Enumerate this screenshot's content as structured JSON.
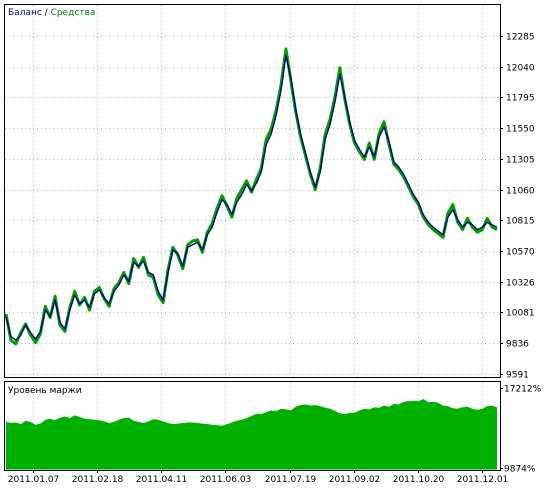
{
  "chart_data": [
    {
      "type": "line",
      "legend": {
        "items": [
          {
            "name": "Баланс",
            "color": "#00008b"
          },
          {
            "name": "Средства",
            "color": "#00a000"
          }
        ],
        "separator": " / ",
        "placement": "top-left"
      },
      "ylim": [
        9591,
        12530
      ],
      "y_ticks": [
        "12285",
        "12040",
        "11795",
        "11550",
        "11305",
        "11060",
        "10815",
        "10570",
        "10326",
        "10081",
        "9836",
        "9591"
      ],
      "grid": true,
      "series": [
        {
          "name": "Баланс",
          "color": "#00008b",
          "x": [
            0,
            1,
            2,
            3,
            4,
            5,
            6,
            7,
            8,
            9,
            10,
            11,
            12,
            13,
            14,
            15,
            16,
            17,
            18,
            19,
            20,
            21,
            22,
            23,
            24,
            25,
            26,
            27,
            28,
            29,
            30,
            31,
            32,
            33,
            34,
            35,
            36,
            37,
            38,
            39,
            40,
            41,
            42,
            43,
            44,
            45,
            46,
            47,
            48,
            49,
            50,
            51,
            52,
            53,
            54,
            55,
            56,
            57,
            58,
            59,
            60,
            61,
            62,
            63,
            64,
            65,
            66,
            67,
            68,
            69,
            70,
            71,
            72,
            73,
            74,
            75,
            76,
            77,
            78,
            79,
            80,
            81,
            82,
            83,
            84,
            85,
            86,
            87,
            88,
            89,
            90,
            91,
            92,
            93,
            94,
            95,
            96,
            97,
            98,
            99,
            100
          ],
          "values": [
            10050,
            9890,
            9860,
            9900,
            9980,
            9920,
            9870,
            9930,
            10100,
            10050,
            10180,
            10000,
            9950,
            10100,
            10220,
            10150,
            10180,
            10120,
            10230,
            10260,
            10200,
            10150,
            10250,
            10300,
            10380,
            10330,
            10480,
            10450,
            10490,
            10400,
            10380,
            10250,
            10180,
            10400,
            10580,
            10550,
            10450,
            10600,
            10620,
            10640,
            10580,
            10700,
            10760,
            10880,
            10980,
            10940,
            10860,
            10960,
            11020,
            11100,
            11050,
            11110,
            11200,
            11420,
            11500,
            11650,
            11850,
            12130,
            11950,
            11700,
            11500,
            11350,
            11200,
            11080,
            11200,
            11460,
            11580,
            11760,
            11980,
            11800,
            11600,
            11450,
            11380,
            11320,
            11400,
            11320,
            11480,
            11560,
            11440,
            11280,
            11240,
            11180,
            11100,
            11020,
            10960,
            10860,
            10800,
            10760,
            10730,
            10700,
            10840,
            10900,
            10820,
            10760,
            10800,
            10780,
            10740,
            10760,
            10800,
            10780,
            10760
          ]
        },
        {
          "name": "Средства",
          "color": "#00a000",
          "x": [
            0,
            1,
            2,
            3,
            4,
            5,
            6,
            7,
            8,
            9,
            10,
            11,
            12,
            13,
            14,
            15,
            16,
            17,
            18,
            19,
            20,
            21,
            22,
            23,
            24,
            25,
            26,
            27,
            28,
            29,
            30,
            31,
            32,
            33,
            34,
            35,
            36,
            37,
            38,
            39,
            40,
            41,
            42,
            43,
            44,
            45,
            46,
            47,
            48,
            49,
            50,
            51,
            52,
            53,
            54,
            55,
            56,
            57,
            58,
            59,
            60,
            61,
            62,
            63,
            64,
            65,
            66,
            67,
            68,
            69,
            70,
            71,
            72,
            73,
            74,
            75,
            76,
            77,
            78,
            79,
            80,
            81,
            82,
            83,
            84,
            85,
            86,
            87,
            88,
            89,
            90,
            91,
            92,
            93,
            94,
            95,
            96,
            97,
            98,
            99,
            100
          ],
          "values": [
            10070,
            9860,
            9830,
            9920,
            9990,
            9900,
            9840,
            9910,
            10130,
            10040,
            10210,
            9980,
            9930,
            10120,
            10250,
            10140,
            10200,
            10100,
            10250,
            10280,
            10190,
            10130,
            10270,
            10320,
            10400,
            10310,
            10510,
            10440,
            10520,
            10380,
            10360,
            10220,
            10160,
            10420,
            10600,
            10540,
            10430,
            10620,
            10650,
            10660,
            10560,
            10720,
            10790,
            10910,
            11010,
            10930,
            10840,
            10990,
            11060,
            11130,
            11040,
            11140,
            11230,
            11460,
            11540,
            11690,
            11890,
            12180,
            11930,
            11680,
            11480,
            11330,
            11180,
            11060,
            11230,
            11500,
            11620,
            11800,
            12030,
            11780,
            11580,
            11430,
            11360,
            11300,
            11430,
            11300,
            11510,
            11600,
            11420,
            11260,
            11220,
            11160,
            11080,
            11000,
            10940,
            10840,
            10780,
            10740,
            10710,
            10680,
            10870,
            10940,
            10800,
            10740,
            10830,
            10760,
            10720,
            10740,
            10830,
            10760,
            10740
          ]
        }
      ]
    },
    {
      "type": "area",
      "title": "Уровень маржи",
      "color": "#00b000",
      "ylim": [
        9874,
        17212
      ],
      "y_ticks": [
        "17212%",
        "9874%"
      ],
      "x_tick_labels": [
        "2011.01.07",
        "2011.02.18",
        "2011.04.11",
        "2011.06.03",
        "2011.07.19",
        "2011.09.02",
        "2011.10.20",
        "2011.12.01"
      ],
      "grid": true,
      "values": [
        14100,
        14000,
        14050,
        13900,
        14200,
        14100,
        13850,
        13950,
        14300,
        14400,
        14250,
        14500,
        14600,
        14450,
        14700,
        14550,
        14400,
        14350,
        14300,
        14250,
        14150,
        14000,
        14100,
        14300,
        14450,
        14500,
        14200,
        14100,
        14000,
        14150,
        14350,
        14300,
        14150,
        14000,
        13900,
        13950,
        14000,
        14050,
        14050,
        14000,
        13950,
        13900,
        13850,
        13800,
        13750,
        13900,
        14050,
        14200,
        14300,
        14450,
        14650,
        14850,
        14800,
        15000,
        15150,
        15100,
        15300,
        15250,
        15150,
        15500,
        15650,
        15700,
        15600,
        15650,
        15550,
        15400,
        15300,
        15100,
        14900,
        14800,
        14950,
        14950,
        15150,
        15300,
        15250,
        15450,
        15400,
        15600,
        15500,
        15750,
        15700,
        15950,
        16000,
        16050,
        16000,
        16200,
        15900,
        15950,
        15850,
        15600,
        15550,
        15350,
        15300,
        15450,
        15500,
        15300,
        15200,
        15300,
        15550,
        15600,
        15450
      ]
    }
  ]
}
